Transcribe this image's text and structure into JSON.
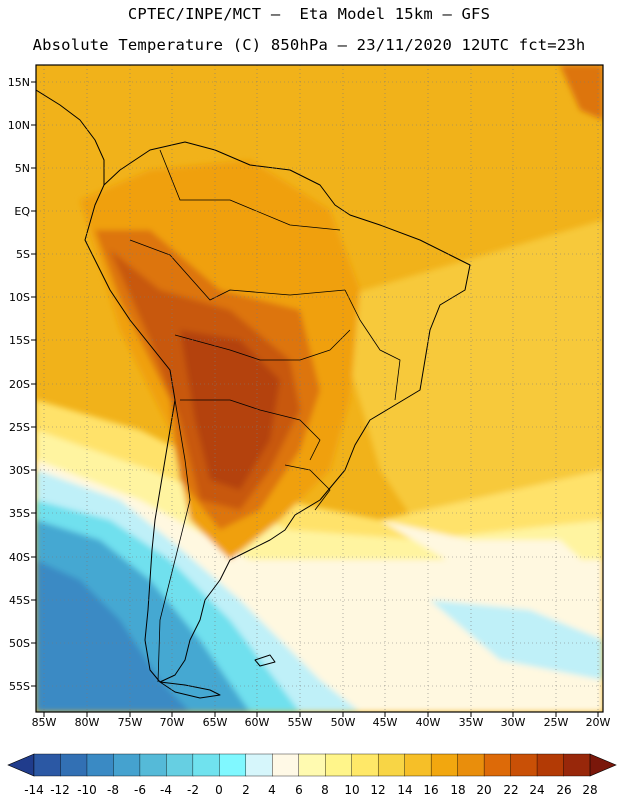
{
  "header": {
    "title_line1": "CPTEC/INPE/MCT –  Eta Model 15km – GFS",
    "title_line2": "Absolute Temperature (C) 850hPa – 23/11/2020 12UTC fct=23h"
  },
  "axes": {
    "lat_labels": [
      "15N",
      "10N",
      "5N",
      "EQ",
      "5S",
      "10S",
      "15S",
      "20S",
      "25S",
      "30S",
      "35S",
      "40S",
      "45S",
      "50S",
      "55S"
    ],
    "lon_labels": [
      "85W",
      "80W",
      "75W",
      "70W",
      "65W",
      "60W",
      "55W",
      "50W",
      "45W",
      "40W",
      "35W",
      "30W",
      "25W",
      "20W"
    ]
  },
  "colorbar": {
    "labels": [
      "-14",
      "-12",
      "-10",
      "-8",
      "-6",
      "-4",
      "-2",
      "0",
      "2",
      "4",
      "6",
      "8",
      "10",
      "12",
      "14",
      "16",
      "18",
      "20",
      "22",
      "24",
      "26",
      "28"
    ],
    "colors": [
      "#203c8c",
      "#2b58a4",
      "#3270b4",
      "#3a8ac4",
      "#45a2cf",
      "#55bad8",
      "#66cfe2",
      "#70e2ee",
      "#80f8ff",
      "#d6f6fb",
      "#fff9e6",
      "#fffab0",
      "#fff58a",
      "#ffe868",
      "#f8d545",
      "#f6bf28",
      "#f2a70f",
      "#e98e0c",
      "#dd6a08",
      "#c95006",
      "#b33a05",
      "#98270a",
      "#7a170a"
    ]
  },
  "legend": {
    "palette": {
      "tropical_ocean": "#f1b21a",
      "atlantic_mid": "#f7c93a",
      "subtropical": "#ffe26a",
      "temperate": "#fff4a0",
      "cool": "#fff8e0",
      "cold": "#bff0f8",
      "colder": "#6fe0ee",
      "coldest": "#45a8d2",
      "land_warm": "#f0a010",
      "land_hot": "#dd7410",
      "land_hotter": "#c85808",
      "land_hottest": "#b44208"
    }
  }
}
